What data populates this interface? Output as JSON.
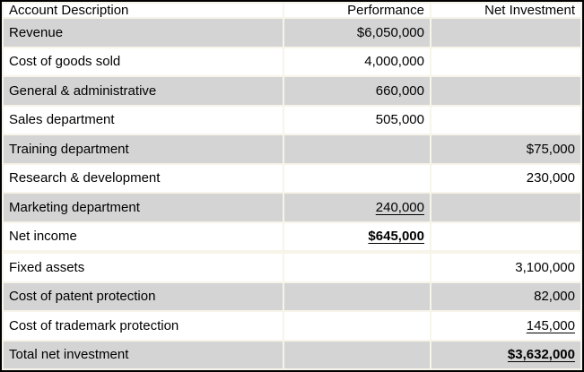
{
  "colors": {
    "row_shade": "#d4d4d4",
    "gridline": "#f7f4e9",
    "outer_border": "#000000",
    "text": "#000000"
  },
  "table": {
    "columns": [
      {
        "id": "account",
        "label": "Account Description"
      },
      {
        "id": "performance",
        "label": "Performance"
      },
      {
        "id": "net_investment",
        "label": "Net Investment"
      }
    ],
    "rows": [
      {
        "account": "Revenue",
        "performance": "$6,050,000",
        "net_investment": "",
        "shade": true,
        "perf_style": "",
        "inv_style": ""
      },
      {
        "account": "Cost of goods sold",
        "performance": "4,000,000",
        "net_investment": "",
        "shade": false,
        "perf_style": "",
        "inv_style": ""
      },
      {
        "account": "General & administrative",
        "performance": "660,000",
        "net_investment": "",
        "shade": true,
        "perf_style": "",
        "inv_style": ""
      },
      {
        "account": "Sales department",
        "performance": "505,000",
        "net_investment": "",
        "shade": false,
        "perf_style": "",
        "inv_style": ""
      },
      {
        "account": "Training department",
        "performance": "",
        "net_investment": "$75,000",
        "shade": true,
        "perf_style": "",
        "inv_style": ""
      },
      {
        "account": "Research & development",
        "performance": "",
        "net_investment": "230,000",
        "shade": false,
        "perf_style": "",
        "inv_style": ""
      },
      {
        "account": "Marketing department",
        "performance": "240,000",
        "net_investment": "",
        "shade": true,
        "perf_style": "underline",
        "inv_style": ""
      },
      {
        "account": "Net income",
        "performance": "$645,000",
        "net_investment": "",
        "shade": false,
        "perf_style": "bold underline",
        "inv_style": ""
      },
      {
        "account": "",
        "performance": "",
        "net_investment": "",
        "shade": true,
        "perf_style": "",
        "inv_style": ""
      },
      {
        "account": "Fixed assets",
        "performance": "",
        "net_investment": "3,100,000",
        "shade": false,
        "perf_style": "",
        "inv_style": ""
      },
      {
        "account": "Cost of patent protection",
        "performance": "",
        "net_investment": "82,000",
        "shade": true,
        "perf_style": "",
        "inv_style": ""
      },
      {
        "account": "Cost of trademark protection",
        "performance": "",
        "net_investment": "145,000",
        "shade": false,
        "perf_style": "",
        "inv_style": "underline"
      },
      {
        "account": "Total net investment",
        "performance": "",
        "net_investment": "$3,632,000",
        "shade": true,
        "perf_style": "",
        "inv_style": "bold underline"
      }
    ]
  }
}
